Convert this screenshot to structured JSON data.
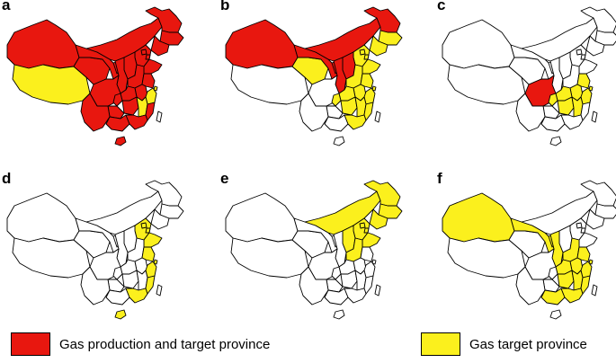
{
  "colors": {
    "production": "#e8170f",
    "target": "#fbf01d",
    "none": "#ffffff",
    "border": "#000000"
  },
  "panels": [
    {
      "letter": "a"
    },
    {
      "letter": "b"
    },
    {
      "letter": "c"
    },
    {
      "letter": "d"
    },
    {
      "letter": "e"
    },
    {
      "letter": "f"
    }
  ],
  "legend": {
    "production_label": "Gas production and target province",
    "target_label": "Gas target province"
  }
}
